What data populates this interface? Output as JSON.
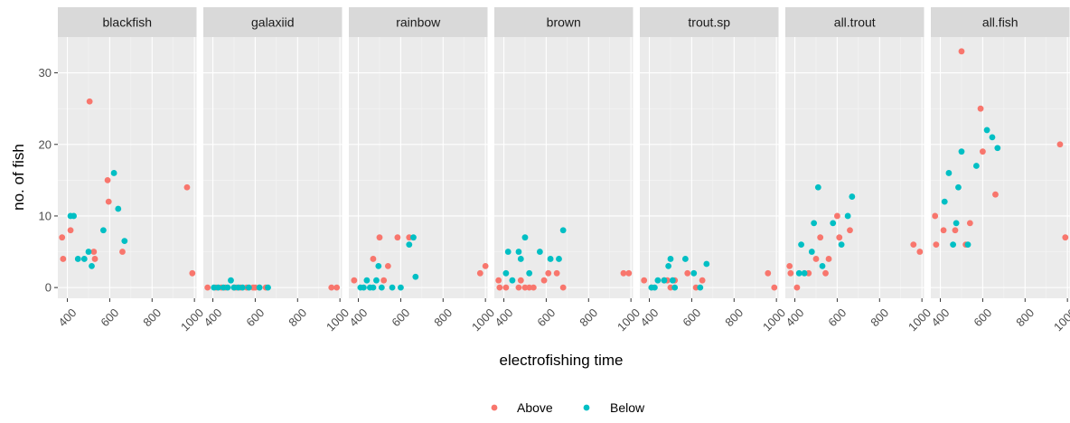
{
  "chart_data": {
    "type": "scatter",
    "xlabel": "electrofishing time",
    "ylabel": "no. of fish",
    "x_ticks": [
      "400",
      "600",
      "800",
      "1000"
    ],
    "y_ticks": [
      "0",
      "10",
      "20",
      "30"
    ],
    "xlim": [
      355,
      1010
    ],
    "ylim": [
      -1.5,
      35
    ],
    "grid": true,
    "legend_position": "bottom",
    "series": [
      {
        "name": "Above",
        "color": "#F8766D"
      },
      {
        "name": "Below",
        "color": "#00BFC4"
      }
    ],
    "panels": [
      {
        "title": "blackfish",
        "points": {
          "Above": [
            [
              375,
              7
            ],
            [
              380,
              4
            ],
            [
              415,
              8
            ],
            [
              505,
              26
            ],
            [
              525,
              5
            ],
            [
              530,
              4
            ],
            [
              590,
              15
            ],
            [
              595,
              12
            ],
            [
              660,
              5
            ],
            [
              965,
              14
            ],
            [
              990,
              2
            ]
          ],
          "Below": [
            [
              415,
              10
            ],
            [
              430,
              10
            ],
            [
              450,
              4
            ],
            [
              480,
              4
            ],
            [
              500,
              5
            ],
            [
              515,
              3
            ],
            [
              570,
              8
            ],
            [
              620,
              16
            ],
            [
              640,
              11
            ],
            [
              670,
              6.5
            ]
          ]
        }
      },
      {
        "title": "galaxiid",
        "points": {
          "Above": [
            [
              375,
              0
            ],
            [
              415,
              0
            ],
            [
              440,
              0
            ],
            [
              460,
              0
            ],
            [
              500,
              0
            ],
            [
              510,
              0
            ],
            [
              530,
              0
            ],
            [
              560,
              0
            ],
            [
              590,
              0
            ],
            [
              600,
              0
            ],
            [
              620,
              0
            ],
            [
              650,
              0
            ],
            [
              960,
              0
            ],
            [
              985,
              0
            ]
          ],
          "Below": [
            [
              405,
              0
            ],
            [
              425,
              0
            ],
            [
              450,
              0
            ],
            [
              470,
              0
            ],
            [
              485,
              1
            ],
            [
              500,
              0
            ],
            [
              520,
              0
            ],
            [
              540,
              0
            ],
            [
              570,
              0
            ],
            [
              620,
              0
            ],
            [
              660,
              0
            ]
          ]
        }
      },
      {
        "title": "rainbow",
        "points": {
          "Above": [
            [
              380,
              1
            ],
            [
              470,
              4
            ],
            [
              500,
              7
            ],
            [
              520,
              1
            ],
            [
              540,
              3
            ],
            [
              585,
              7
            ],
            [
              640,
              7
            ],
            [
              975,
              2
            ],
            [
              1000,
              3
            ]
          ],
          "Below": [
            [
              410,
              0
            ],
            [
              425,
              0
            ],
            [
              440,
              1
            ],
            [
              455,
              0
            ],
            [
              470,
              0
            ],
            [
              485,
              1
            ],
            [
              495,
              3
            ],
            [
              510,
              0
            ],
            [
              560,
              0
            ],
            [
              600,
              0
            ],
            [
              640,
              6
            ],
            [
              660,
              7
            ],
            [
              670,
              1.5
            ]
          ]
        }
      },
      {
        "title": "brown",
        "points": {
          "Above": [
            [
              375,
              1
            ],
            [
              380,
              0
            ],
            [
              410,
              0
            ],
            [
              470,
              0
            ],
            [
              480,
              1
            ],
            [
              500,
              0
            ],
            [
              520,
              0
            ],
            [
              540,
              0
            ],
            [
              590,
              1
            ],
            [
              610,
              2
            ],
            [
              650,
              2
            ],
            [
              680,
              0
            ],
            [
              965,
              2
            ],
            [
              990,
              2
            ]
          ],
          "Below": [
            [
              410,
              2
            ],
            [
              420,
              5
            ],
            [
              440,
              1
            ],
            [
              470,
              5
            ],
            [
              480,
              4
            ],
            [
              500,
              7
            ],
            [
              520,
              2
            ],
            [
              570,
              5
            ],
            [
              620,
              4
            ],
            [
              660,
              4
            ],
            [
              680,
              8
            ]
          ]
        }
      },
      {
        "title": "trout.sp",
        "points": {
          "Above": [
            [
              375,
              1
            ],
            [
              410,
              0
            ],
            [
              470,
              1
            ],
            [
              485,
              1
            ],
            [
              500,
              0
            ],
            [
              520,
              1
            ],
            [
              580,
              2
            ],
            [
              620,
              0
            ],
            [
              650,
              1
            ],
            [
              960,
              2
            ],
            [
              990,
              0
            ]
          ],
          "Below": [
            [
              410,
              0
            ],
            [
              425,
              0
            ],
            [
              440,
              1
            ],
            [
              470,
              1
            ],
            [
              490,
              3
            ],
            [
              500,
              4
            ],
            [
              510,
              1
            ],
            [
              520,
              0
            ],
            [
              570,
              4
            ],
            [
              610,
              2
            ],
            [
              640,
              0
            ],
            [
              670,
              3.3
            ]
          ]
        }
      },
      {
        "title": "all.trout",
        "points": {
          "Above": [
            [
              375,
              3
            ],
            [
              380,
              2
            ],
            [
              410,
              0
            ],
            [
              465,
              2
            ],
            [
              500,
              4
            ],
            [
              520,
              7
            ],
            [
              545,
              2
            ],
            [
              560,
              4
            ],
            [
              600,
              10
            ],
            [
              610,
              7
            ],
            [
              660,
              8
            ],
            [
              960,
              6
            ],
            [
              990,
              5
            ]
          ],
          "Below": [
            [
              420,
              2
            ],
            [
              430,
              6
            ],
            [
              445,
              2
            ],
            [
              480,
              5
            ],
            [
              490,
              9
            ],
            [
              510,
              14
            ],
            [
              530,
              3
            ],
            [
              580,
              9
            ],
            [
              620,
              6
            ],
            [
              650,
              10
            ],
            [
              670,
              12.7
            ]
          ]
        }
      },
      {
        "title": "all.fish",
        "points": {
          "Above": [
            [
              375,
              10
            ],
            [
              380,
              6
            ],
            [
              415,
              8
            ],
            [
              470,
              8
            ],
            [
              500,
              33
            ],
            [
              520,
              6
            ],
            [
              540,
              9
            ],
            [
              590,
              25
            ],
            [
              600,
              19
            ],
            [
              660,
              13
            ],
            [
              965,
              20
            ],
            [
              990,
              7
            ]
          ],
          "Below": [
            [
              420,
              12
            ],
            [
              440,
              16
            ],
            [
              460,
              6
            ],
            [
              475,
              9
            ],
            [
              485,
              14
            ],
            [
              500,
              19
            ],
            [
              530,
              6
            ],
            [
              570,
              17
            ],
            [
              620,
              22
            ],
            [
              645,
              21
            ],
            [
              670,
              19.5
            ]
          ]
        }
      }
    ]
  }
}
